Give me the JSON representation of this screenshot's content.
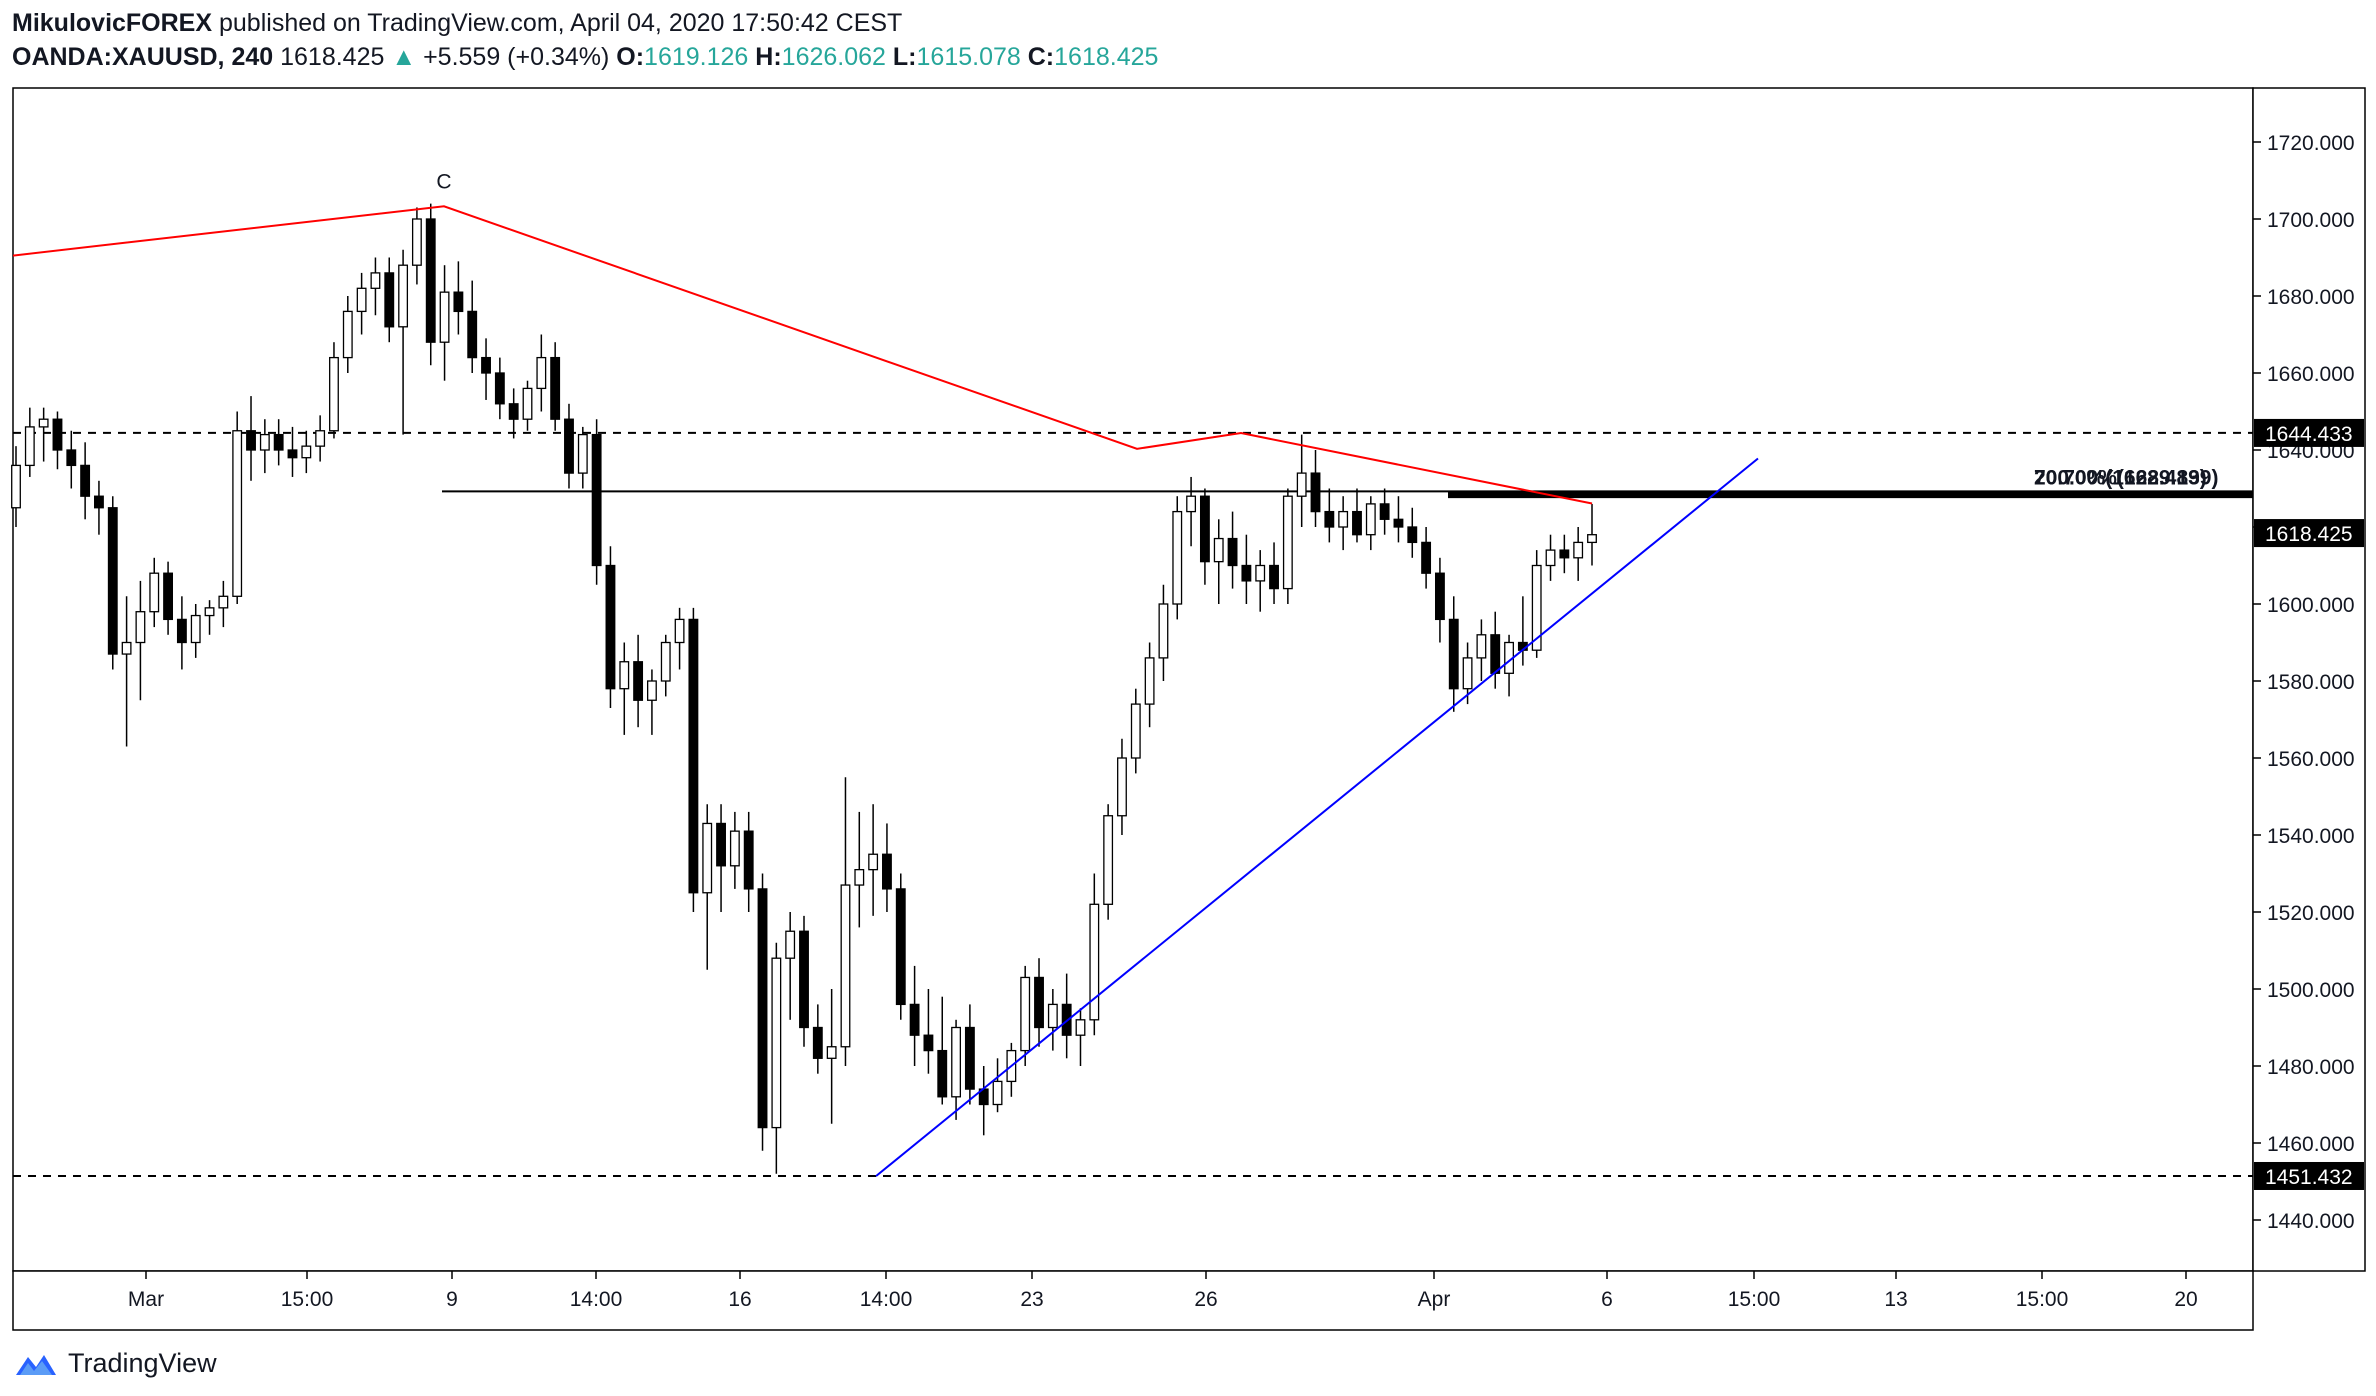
{
  "header": {
    "author": "MikulovicFOREX",
    "published_text": "published on TradingView.com, April 04, 2020 17:50:42 CEST",
    "symbol": "OANDA:XAUUSD, 240",
    "last": "1618.425",
    "change": "+5.559 (+0.34%)",
    "o_label": "O:",
    "o_value": "1619.126",
    "h_label": "H:",
    "h_value": "1626.062",
    "l_label": "L:",
    "l_value": "1615.078",
    "c_label": "C:",
    "c_value": "1618.425"
  },
  "footer": {
    "brand": "TradingView",
    "logo_icon": "tradingview-logo-icon"
  },
  "colors": {
    "candle_up": "#ffffff",
    "candle_down": "#000000",
    "wave_line": "#ff0000",
    "trend_line": "#0000ff",
    "level_line": "#000000",
    "accent": "#26a69a",
    "last_price_tag": "#000000"
  },
  "chart_data": {
    "type": "candlestick",
    "title": "OANDA:XAUUSD, 240",
    "ylim": [
      1428,
      1733
    ],
    "y_ticks": [
      1440,
      1460,
      1480,
      1500,
      1520,
      1540,
      1560,
      1580,
      1600,
      1620,
      1640,
      1660,
      1680,
      1700,
      1720
    ],
    "y_tick_labels": [
      "1440.000",
      "1460.000",
      "1480.000",
      "1500.000",
      "1520.000",
      "1540.000",
      "1560.000",
      "1580.000",
      "1600.000",
      "1620.000",
      "1640.000",
      "1660.000",
      "1680.000",
      "1700.000",
      "1720.000"
    ],
    "x_tick_labels": [
      "Mar",
      "15:00",
      "9",
      "14:00",
      "16",
      "14:00",
      "23",
      "26",
      "Apr",
      "6",
      "15:00",
      "13",
      "15:00",
      "20"
    ],
    "grid": false,
    "candles_approx": [
      [
        1625,
        1641,
        1620,
        1636
      ],
      [
        1636,
        1651,
        1633,
        1646
      ],
      [
        1646,
        1651,
        1637,
        1648
      ],
      [
        1648,
        1650,
        1635,
        1640
      ],
      [
        1640,
        1645,
        1630,
        1636
      ],
      [
        1636,
        1642,
        1622,
        1628
      ],
      [
        1628,
        1632,
        1618,
        1625
      ],
      [
        1625,
        1628,
        1583,
        1587
      ],
      [
        1587,
        1602,
        1563,
        1590
      ],
      [
        1590,
        1606,
        1575,
        1598
      ],
      [
        1598,
        1612,
        1594,
        1608
      ],
      [
        1608,
        1611,
        1592,
        1596
      ],
      [
        1596,
        1602,
        1583,
        1590
      ],
      [
        1590,
        1600,
        1586,
        1597
      ],
      [
        1597,
        1601,
        1592,
        1599
      ],
      [
        1599,
        1606,
        1594,
        1602
      ],
      [
        1602,
        1650,
        1600,
        1645
      ],
      [
        1645,
        1654,
        1632,
        1640
      ],
      [
        1640,
        1648,
        1634,
        1644
      ],
      [
        1644,
        1648,
        1636,
        1640
      ],
      [
        1640,
        1646,
        1633,
        1638
      ],
      [
        1638,
        1645,
        1634,
        1641
      ],
      [
        1641,
        1649,
        1637,
        1645
      ],
      [
        1645,
        1668,
        1643,
        1664
      ],
      [
        1664,
        1680,
        1660,
        1676
      ],
      [
        1676,
        1686,
        1670,
        1682
      ],
      [
        1682,
        1690,
        1675,
        1686
      ],
      [
        1686,
        1690,
        1668,
        1672
      ],
      [
        1672,
        1692,
        1644,
        1688
      ],
      [
        1688,
        1703,
        1683,
        1700
      ],
      [
        1700,
        1704,
        1662,
        1668
      ],
      [
        1668,
        1688,
        1658,
        1681
      ],
      [
        1681,
        1689,
        1670,
        1676
      ],
      [
        1676,
        1684,
        1660,
        1664
      ],
      [
        1664,
        1669,
        1653,
        1660
      ],
      [
        1660,
        1664,
        1648,
        1652
      ],
      [
        1652,
        1656,
        1643,
        1648
      ],
      [
        1648,
        1658,
        1645,
        1656
      ],
      [
        1656,
        1670,
        1650,
        1664
      ],
      [
        1664,
        1668,
        1645,
        1648
      ],
      [
        1648,
        1652,
        1630,
        1634
      ],
      [
        1634,
        1646,
        1630,
        1644
      ],
      [
        1644,
        1648,
        1605,
        1610
      ],
      [
        1610,
        1615,
        1573,
        1578
      ],
      [
        1578,
        1590,
        1566,
        1585
      ],
      [
        1585,
        1592,
        1568,
        1575
      ],
      [
        1575,
        1583,
        1566,
        1580
      ],
      [
        1580,
        1592,
        1576,
        1590
      ],
      [
        1590,
        1599,
        1583,
        1596
      ],
      [
        1596,
        1599,
        1520,
        1525
      ],
      [
        1525,
        1548,
        1505,
        1543
      ],
      [
        1543,
        1548,
        1520,
        1532
      ],
      [
        1532,
        1546,
        1526,
        1541
      ],
      [
        1541,
        1546,
        1520,
        1526
      ],
      [
        1526,
        1530,
        1458,
        1464
      ],
      [
        1464,
        1512,
        1452,
        1508
      ],
      [
        1508,
        1520,
        1492,
        1515
      ],
      [
        1515,
        1519,
        1485,
        1490
      ],
      [
        1490,
        1496,
        1478,
        1482
      ],
      [
        1482,
        1500,
        1465,
        1485
      ],
      [
        1485,
        1555,
        1480,
        1527
      ],
      [
        1527,
        1546,
        1516,
        1531
      ],
      [
        1531,
        1548,
        1519,
        1535
      ],
      [
        1535,
        1543,
        1520,
        1526
      ],
      [
        1526,
        1530,
        1492,
        1496
      ],
      [
        1496,
        1506,
        1480,
        1488
      ],
      [
        1488,
        1500,
        1478,
        1484
      ],
      [
        1484,
        1498,
        1470,
        1472
      ],
      [
        1472,
        1492,
        1466,
        1490
      ],
      [
        1490,
        1496,
        1470,
        1474
      ],
      [
        1474,
        1480,
        1462,
        1470
      ],
      [
        1470,
        1482,
        1468,
        1476
      ],
      [
        1476,
        1486,
        1472,
        1484
      ],
      [
        1484,
        1506,
        1480,
        1503
      ],
      [
        1503,
        1508,
        1485,
        1490
      ],
      [
        1490,
        1500,
        1484,
        1496
      ],
      [
        1496,
        1504,
        1482,
        1488
      ],
      [
        1488,
        1495,
        1480,
        1492
      ],
      [
        1492,
        1530,
        1488,
        1522
      ],
      [
        1522,
        1548,
        1518,
        1545
      ],
      [
        1545,
        1565,
        1540,
        1560
      ],
      [
        1560,
        1578,
        1556,
        1574
      ],
      [
        1574,
        1590,
        1568,
        1586
      ],
      [
        1586,
        1605,
        1580,
        1600
      ],
      [
        1600,
        1628,
        1596,
        1624
      ],
      [
        1624,
        1633,
        1615,
        1628
      ],
      [
        1628,
        1630,
        1605,
        1611
      ],
      [
        1611,
        1622,
        1600,
        1617
      ],
      [
        1617,
        1624,
        1604,
        1610
      ],
      [
        1610,
        1618,
        1600,
        1606
      ],
      [
        1606,
        1614,
        1598,
        1610
      ],
      [
        1610,
        1616,
        1600,
        1604
      ],
      [
        1604,
        1630,
        1600,
        1628
      ],
      [
        1628,
        1644,
        1620,
        1634
      ],
      [
        1634,
        1640,
        1620,
        1624
      ],
      [
        1624,
        1630,
        1616,
        1620
      ],
      [
        1620,
        1628,
        1614,
        1624
      ],
      [
        1624,
        1630,
        1616,
        1618
      ],
      [
        1618,
        1628,
        1614,
        1626
      ],
      [
        1626,
        1630,
        1618,
        1622
      ],
      [
        1622,
        1628,
        1616,
        1620
      ],
      [
        1620,
        1625,
        1612,
        1616
      ],
      [
        1616,
        1620,
        1604,
        1608
      ],
      [
        1608,
        1612,
        1590,
        1596
      ],
      [
        1596,
        1602,
        1572,
        1578
      ],
      [
        1578,
        1590,
        1574,
        1586
      ],
      [
        1586,
        1596,
        1580,
        1592
      ],
      [
        1592,
        1598,
        1578,
        1582
      ],
      [
        1582,
        1592,
        1576,
        1590
      ],
      [
        1590,
        1602,
        1584,
        1588
      ],
      [
        1588,
        1614,
        1586,
        1610
      ],
      [
        1610,
        1618,
        1606,
        1614
      ],
      [
        1614,
        1618,
        1608,
        1612
      ],
      [
        1612,
        1620,
        1606,
        1616
      ],
      [
        1616,
        1626,
        1610,
        1618
      ]
    ],
    "horizontal_levels": [
      {
        "value": 1644.433,
        "label": "1644.433",
        "style": "dashed"
      },
      {
        "value": 1451.432,
        "label": "1451.432",
        "style": "dashed"
      },
      {
        "value": 1629.25,
        "label": "",
        "style": "solid"
      },
      {
        "value": 1628.4,
        "label": "",
        "style": "thick"
      }
    ],
    "fib_label": "70.70%(1628.489)",
    "fib_label_overlap": "200.00%(1629.139)",
    "last_price_label": "1618.425",
    "wave_label": "C"
  }
}
